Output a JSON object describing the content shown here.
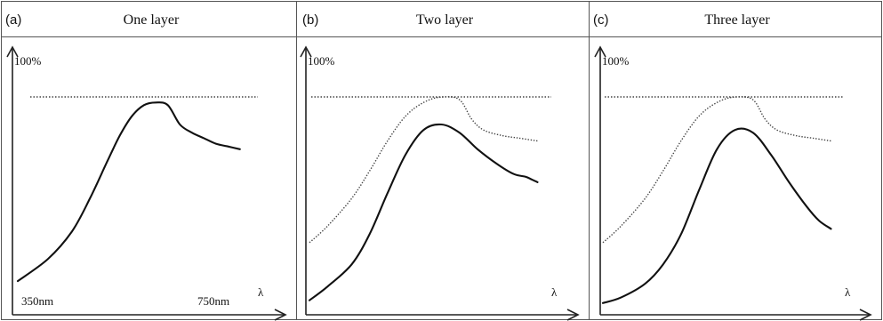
{
  "chart_data": [
    {
      "type": "line",
      "panel_letter": "(a)",
      "title": "One layer",
      "ylabel": "100%",
      "xlabel": "λ",
      "x_tick_labels": [
        "350nm",
        "750nm"
      ],
      "xlim": [
        350,
        750
      ],
      "ylim": [
        0,
        100
      ],
      "reference_level": 86,
      "series": [
        {
          "style": "solid",
          "x": [
            350,
            400,
            440,
            470,
            500,
            520,
            540,
            560,
            580,
            600,
            620,
            640,
            660,
            680,
            700,
            720
          ],
          "y": [
            10,
            18,
            28,
            40,
            54,
            63,
            70,
            74,
            75,
            74,
            67,
            64,
            62,
            60,
            59,
            58
          ]
        }
      ]
    },
    {
      "type": "line",
      "panel_letter": "(b)",
      "title": "Two layer",
      "ylabel": "100%",
      "xlabel": "λ",
      "xlim": [
        350,
        750
      ],
      "ylim": [
        0,
        100
      ],
      "reference_level": 86,
      "series": [
        {
          "style": "dotted",
          "x": [
            350,
            380,
            420,
            450,
            480,
            510,
            540,
            570,
            600,
            620,
            640,
            670,
            700,
            730
          ],
          "y": [
            24,
            30,
            40,
            50,
            61,
            70,
            75,
            77,
            76,
            69,
            65,
            63,
            62,
            61
          ]
        },
        {
          "style": "solid",
          "x": [
            350,
            380,
            420,
            450,
            480,
            510,
            540,
            570,
            600,
            630,
            660,
            690,
            710,
            720,
            730
          ],
          "y": [
            3,
            8,
            16,
            27,
            42,
            56,
            65,
            67,
            64,
            58,
            53,
            49,
            48,
            47,
            46
          ]
        }
      ]
    },
    {
      "type": "line",
      "panel_letter": "(c)",
      "title": "Three layer",
      "ylabel": "100%",
      "xlabel": "λ",
      "xlim": [
        350,
        750
      ],
      "ylim": [
        0,
        100
      ],
      "reference_level": 86,
      "series": [
        {
          "style": "dotted",
          "x": [
            350,
            380,
            420,
            450,
            480,
            510,
            540,
            570,
            600,
            620,
            640,
            670,
            700,
            730
          ],
          "y": [
            24,
            30,
            40,
            50,
            61,
            70,
            75,
            77,
            76,
            69,
            65,
            63,
            62,
            61
          ]
        },
        {
          "style": "solid",
          "x": [
            350,
            380,
            420,
            450,
            480,
            510,
            540,
            570,
            600,
            630,
            660,
            690,
            710,
            730
          ],
          "y": [
            2,
            4,
            9,
            16,
            27,
            43,
            58,
            65,
            64,
            56,
            46,
            37,
            32,
            29
          ]
        }
      ]
    }
  ]
}
